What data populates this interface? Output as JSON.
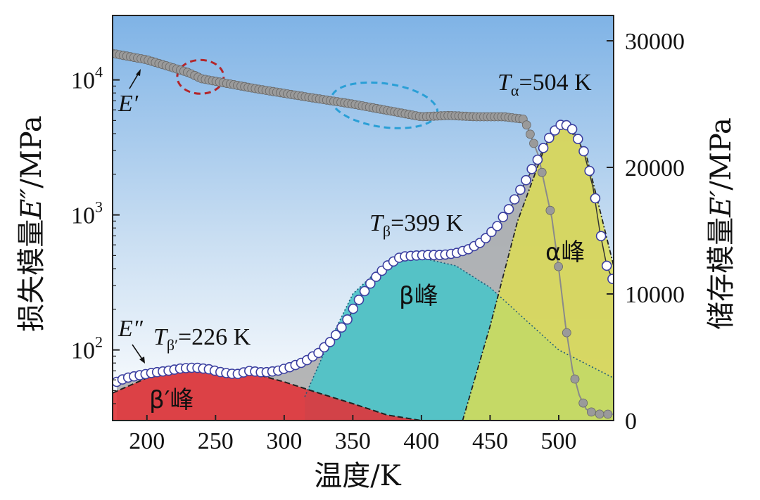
{
  "chart_data": {
    "type": "line",
    "xlabel": "温度/K",
    "ylabel_left": "损失模量E″/MPa",
    "ylabel_right": "储存模量E′/MPa",
    "xlim": [
      175,
      540
    ],
    "ylim_left_log": [
      30,
      30000
    ],
    "ylim_right": [
      0,
      32000
    ],
    "x_ticks": [
      "200",
      "250",
      "300",
      "350",
      "400",
      "450",
      "500"
    ],
    "x_tick_values": [
      200,
      250,
      300,
      350,
      400,
      450,
      500
    ],
    "y_left_ticks": [
      {
        "base": "10",
        "exp": "2",
        "value": 100
      },
      {
        "base": "10",
        "exp": "3",
        "value": 1000
      },
      {
        "base": "10",
        "exp": "4",
        "value": 10000
      }
    ],
    "y_right_ticks": [
      "0",
      "10000",
      "20000",
      "30000"
    ],
    "y_right_tick_values": [
      0,
      10000,
      20000,
      30000
    ],
    "colors": {
      "bg_top": "#7fb3e6",
      "bg_bottom": "#ffffff",
      "beta_prime_peak": "#e0343a",
      "beta_peak": "#4dc3c8",
      "alpha_peak": "#dede50",
      "overlap_fill": "#a9a9a9",
      "loss_marker_edge": "#3b3fa0",
      "storage_marker": "#9a9a9a"
    },
    "series": [
      {
        "name": "E″ (loss modulus)",
        "axis": "left-log",
        "x": [
          178,
          185,
          195,
          205,
          215,
          225,
          235,
          245,
          255,
          265,
          275,
          285,
          295,
          305,
          315,
          325,
          335,
          345,
          355,
          365,
          375,
          385,
          395,
          405,
          415,
          425,
          435,
          445,
          455,
          465,
          475,
          485,
          495,
          503,
          510,
          518,
          525,
          530,
          535,
          540
        ],
        "y": [
          58,
          62,
          65,
          68,
          70,
          73,
          74,
          72,
          68,
          66,
          70,
          68,
          70,
          75,
          82,
          95,
          118,
          160,
          240,
          330,
          420,
          490,
          500,
          505,
          505,
          520,
          560,
          640,
          820,
          1150,
          1700,
          2600,
          4000,
          4800,
          4300,
          3000,
          1600,
          750,
          420,
          320
        ]
      },
      {
        "name": "E′ (storage modulus)",
        "axis": "right-linear",
        "x": [
          175,
          200,
          230,
          240,
          255,
          280,
          320,
          350,
          375,
          400,
          420,
          440,
          460,
          475,
          485,
          495,
          500,
          505,
          510,
          515,
          520,
          525,
          530,
          540
        ],
        "y": [
          29000,
          28500,
          27500,
          27000,
          26700,
          26200,
          25500,
          25000,
          24500,
          24000,
          24100,
          24000,
          24000,
          23800,
          21000,
          16000,
          12000,
          7500,
          4000,
          2000,
          900,
          600,
          500,
          500
        ]
      },
      {
        "name": "β′峰 (fitted)",
        "axis": "left-log",
        "x": [
          175,
          200,
          225,
          250,
          275,
          300,
          325,
          350,
          375,
          400
        ],
        "y": [
          48,
          62,
          70,
          72,
          68,
          58,
          48,
          40,
          33,
          30
        ]
      },
      {
        "name": "β峰 (fitted)",
        "axis": "left-log",
        "x": [
          315,
          330,
          350,
          375,
          400,
          425,
          450,
          475,
          500,
          540
        ],
        "y": [
          45,
          100,
          260,
          450,
          480,
          420,
          290,
          170,
          100,
          62
        ]
      },
      {
        "name": "α峰 (fitted)",
        "axis": "left-log",
        "x": [
          430,
          450,
          470,
          490,
          505,
          520,
          540
        ],
        "y": [
          30,
          150,
          900,
          3200,
          4800,
          2800,
          420
        ]
      }
    ],
    "annotations": [
      {
        "label_italic": "T",
        "sub": "β′",
        "text": "=226 K"
      },
      {
        "label_italic": "T",
        "sub": "β",
        "text": "=399 K"
      },
      {
        "label_italic": "T",
        "sub": "α",
        "text": "=504 K"
      },
      {
        "label": "E′"
      },
      {
        "label": "E″"
      }
    ],
    "peak_labels": [
      "β′峰",
      "β峰",
      "α峰"
    ]
  },
  "titles": {
    "x_axis": "温度/K",
    "y_left_prefix": "损失模量",
    "y_left_symbol": "E″",
    "y_left_suffix": "/MPa",
    "y_right_prefix": "储存模量",
    "y_right_symbol": "E′",
    "y_right_suffix": "/MPa"
  },
  "labels": {
    "e_prime": "E′",
    "e_double_prime": "E″",
    "t_letter": "T",
    "t_beta_prime_sub": "β′",
    "t_beta_prime_value": "=226 K",
    "t_beta_sub": "β",
    "t_beta_value": "=399 K",
    "t_alpha_sub": "α",
    "t_alpha_value": "=504 K",
    "peak_beta_prime": "β′峰",
    "peak_beta": "β峰",
    "peak_alpha": "α峰"
  }
}
